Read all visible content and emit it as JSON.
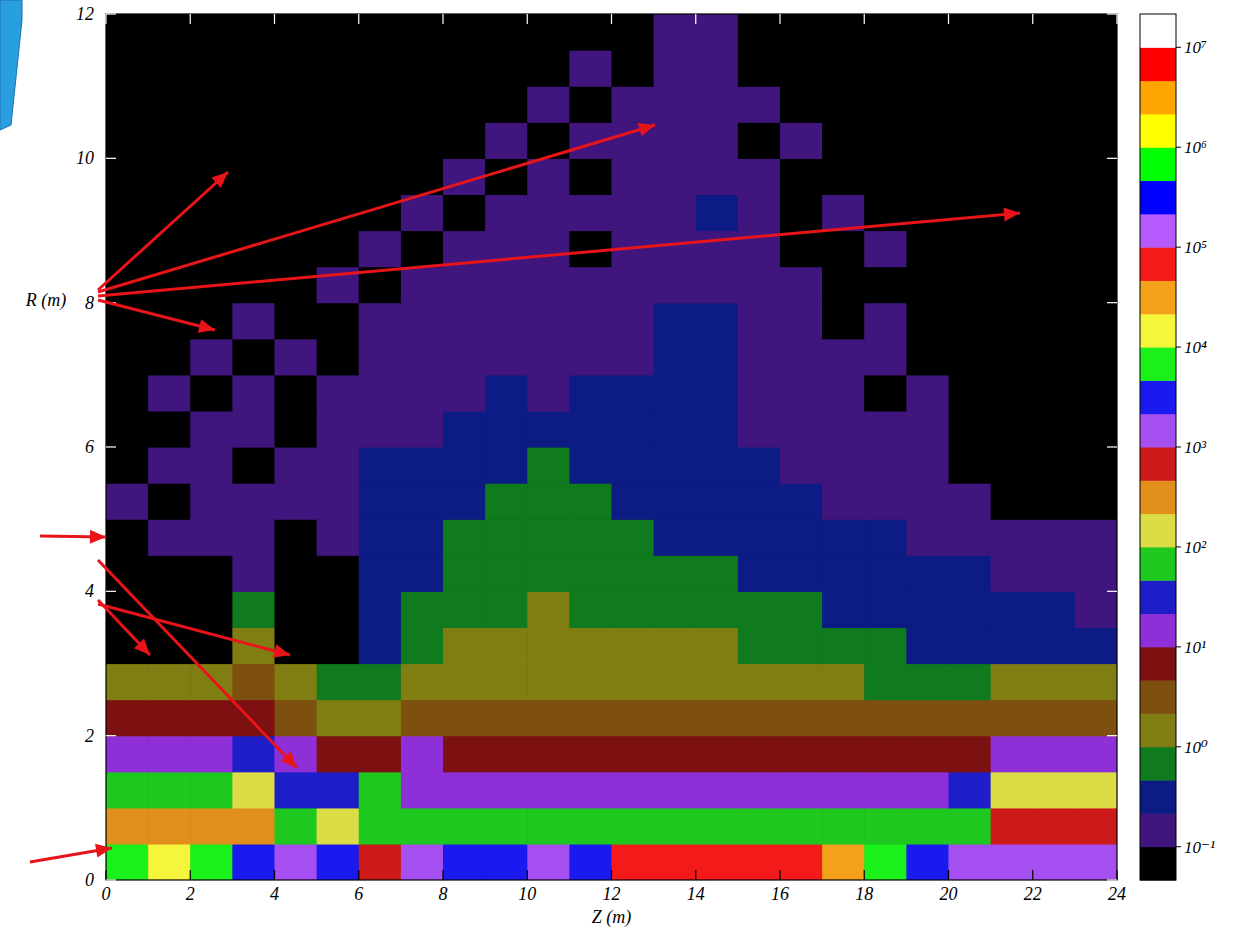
{
  "chart_data": {
    "type": "heatmap",
    "xlabel": "Z (m)",
    "ylabel": "R (m)",
    "xlim": [
      0,
      24
    ],
    "ylim": [
      0,
      12
    ],
    "xticks": [
      0,
      2,
      4,
      6,
      8,
      10,
      12,
      14,
      16,
      18,
      20,
      22,
      24
    ],
    "yticks": [
      0,
      2,
      4,
      6,
      8,
      10,
      12
    ],
    "cells": [
      [
        7000,
        10000,
        7000,
        3000,
        1000,
        3000,
        700,
        1000,
        3000,
        3000,
        1000,
        3000,
        70000,
        70000,
        70000,
        70000,
        70000,
        30000,
        7000,
        3000,
        1000,
        1000,
        1000,
        1000
      ],
      [
        300,
        300,
        300,
        300,
        70,
        100,
        70,
        70,
        70,
        70,
        70,
        70,
        70,
        70,
        70,
        70,
        70,
        70,
        70,
        70,
        70,
        700,
        700,
        700
      ],
      [
        70,
        70,
        70,
        100,
        30,
        30,
        70,
        10,
        10,
        10,
        10,
        10,
        10,
        10,
        10,
        10,
        10,
        10,
        10,
        10,
        30,
        100,
        100,
        100
      ],
      [
        10,
        10,
        10,
        30,
        10,
        7,
        7,
        10,
        7,
        7,
        7,
        7,
        7,
        7,
        7,
        7,
        7,
        7,
        7,
        7,
        7,
        10,
        10,
        10
      ],
      [
        7,
        7,
        7,
        7,
        3,
        1,
        1,
        3,
        3,
        3,
        3,
        3,
        3,
        3,
        3,
        3,
        3,
        3,
        3,
        3,
        3,
        3,
        3,
        3
      ],
      [
        1,
        1,
        1,
        3,
        1,
        0.7,
        0.7,
        1,
        1,
        1,
        1,
        1,
        1,
        1,
        1,
        1,
        1,
        1,
        0.7,
        0.7,
        0.7,
        1,
        1,
        1
      ],
      [
        0.01,
        0.01,
        0.01,
        1,
        0.01,
        0.01,
        0.3,
        0.7,
        1,
        1,
        1,
        1,
        1,
        1,
        1,
        0.7,
        0.7,
        0.7,
        0.7,
        0.3,
        0.3,
        0.3,
        0.3,
        0.3
      ],
      [
        0.01,
        0.01,
        0.01,
        0.7,
        0.01,
        0.01,
        0.3,
        0.7,
        0.7,
        0.7,
        1,
        0.7,
        0.7,
        0.7,
        0.7,
        0.7,
        0.7,
        0.3,
        0.3,
        0.3,
        0.3,
        0.3,
        0.3,
        0.1
      ],
      [
        0.01,
        0.01,
        0.01,
        0.1,
        0.01,
        0.01,
        0.3,
        0.3,
        0.7,
        0.7,
        0.7,
        0.7,
        0.7,
        0.7,
        0.7,
        0.3,
        0.3,
        0.3,
        0.3,
        0.3,
        0.3,
        0.1,
        0.1,
        0.1
      ],
      [
        0.01,
        0.1,
        0.1,
        0.1,
        0.01,
        0.1,
        0.3,
        0.3,
        0.7,
        0.7,
        0.7,
        0.7,
        0.7,
        0.3,
        0.3,
        0.3,
        0.3,
        0.3,
        0.3,
        0.1,
        0.1,
        0.1,
        0.1,
        0.1
      ],
      [
        0.1,
        0.01,
        0.1,
        0.1,
        0.1,
        0.1,
        0.3,
        0.3,
        0.3,
        0.7,
        0.7,
        0.7,
        0.3,
        0.3,
        0.3,
        0.3,
        0.3,
        0.1,
        0.1,
        0.1,
        0.1,
        0.01,
        0.01,
        0.01
      ],
      [
        0.01,
        0.1,
        0.1,
        0.01,
        0.1,
        0.1,
        0.3,
        0.3,
        0.3,
        0.3,
        0.7,
        0.3,
        0.3,
        0.3,
        0.3,
        0.3,
        0.1,
        0.1,
        0.1,
        0.1,
        0.01,
        0.01,
        0.01,
        0.01
      ],
      [
        0.01,
        0.01,
        0.1,
        0.1,
        0.01,
        0.1,
        0.1,
        0.1,
        0.3,
        0.3,
        0.3,
        0.3,
        0.3,
        0.3,
        0.3,
        0.1,
        0.1,
        0.1,
        0.1,
        0.1,
        0.01,
        0.01,
        0.01,
        0.01
      ],
      [
        0.01,
        0.1,
        0.01,
        0.1,
        0.01,
        0.1,
        0.1,
        0.1,
        0.1,
        0.3,
        0.1,
        0.3,
        0.3,
        0.3,
        0.3,
        0.1,
        0.1,
        0.1,
        0.01,
        0.1,
        0.01,
        0.01,
        0.01,
        0.01
      ],
      [
        0.01,
        0.01,
        0.1,
        0.01,
        0.1,
        0.01,
        0.1,
        0.1,
        0.1,
        0.1,
        0.1,
        0.1,
        0.1,
        0.3,
        0.3,
        0.1,
        0.1,
        0.1,
        0.1,
        0.01,
        0.01,
        0.01,
        0.01,
        0.01
      ],
      [
        0.01,
        0.01,
        0.01,
        0.1,
        0.01,
        0.01,
        0.1,
        0.1,
        0.1,
        0.1,
        0.1,
        0.1,
        0.1,
        0.3,
        0.3,
        0.1,
        0.1,
        0.01,
        0.1,
        0.01,
        0.01,
        0.01,
        0.01,
        0.01
      ],
      [
        0.01,
        0.01,
        0.01,
        0.01,
        0.01,
        0.1,
        0.01,
        0.1,
        0.1,
        0.1,
        0.1,
        0.1,
        0.1,
        0.1,
        0.1,
        0.1,
        0.1,
        0.01,
        0.01,
        0.01,
        0.01,
        0.01,
        0.01,
        0.01
      ],
      [
        0.01,
        0.01,
        0.01,
        0.01,
        0.01,
        0.01,
        0.1,
        0.01,
        0.1,
        0.1,
        0.1,
        0.01,
        0.1,
        0.1,
        0.1,
        0.1,
        0.01,
        0.01,
        0.1,
        0.01,
        0.01,
        0.01,
        0.01,
        0.01
      ],
      [
        0.01,
        0.01,
        0.01,
        0.01,
        0.01,
        0.01,
        0.01,
        0.1,
        0.01,
        0.1,
        0.1,
        0.1,
        0.1,
        0.1,
        0.3,
        0.1,
        0.01,
        0.1,
        0.01,
        0.01,
        0.01,
        0.01,
        0.01,
        0.01
      ],
      [
        0.01,
        0.01,
        0.01,
        0.01,
        0.01,
        0.01,
        0.01,
        0.01,
        0.1,
        0.01,
        0.1,
        0.01,
        0.1,
        0.1,
        0.1,
        0.1,
        0.01,
        0.01,
        0.01,
        0.01,
        0.01,
        0.01,
        0.01,
        0.01
      ],
      [
        0.01,
        0.01,
        0.01,
        0.01,
        0.01,
        0.01,
        0.01,
        0.01,
        0.01,
        0.1,
        0.01,
        0.1,
        0.1,
        0.1,
        0.1,
        0.01,
        0.1,
        0.01,
        0.01,
        0.01,
        0.01,
        0.01,
        0.01,
        0.01
      ],
      [
        0.01,
        0.01,
        0.01,
        0.01,
        0.01,
        0.01,
        0.01,
        0.01,
        0.01,
        0.01,
        0.1,
        0.01,
        0.1,
        0.1,
        0.1,
        0.1,
        0.01,
        0.01,
        0.01,
        0.01,
        0.01,
        0.01,
        0.01,
        0.01
      ],
      [
        0.01,
        0.01,
        0.01,
        0.01,
        0.01,
        0.01,
        0.01,
        0.01,
        0.01,
        0.01,
        0.01,
        0.1,
        0.01,
        0.1,
        0.1,
        0.01,
        0.01,
        0.01,
        0.01,
        0.01,
        0.01,
        0.01,
        0.01,
        0.01
      ],
      [
        0.01,
        0.01,
        0.01,
        0.01,
        0.01,
        0.01,
        0.01,
        0.01,
        0.01,
        0.01,
        0.01,
        0.01,
        0.01,
        0.1,
        0.1,
        0.01,
        0.01,
        0.01,
        0.01,
        0.01,
        0.01,
        0.01,
        0.01,
        0.01
      ]
    ],
    "colorbar": {
      "range": [
        0.1,
        10000000
      ],
      "log": true,
      "ticks": [
        {
          "value": 0.1,
          "label": "10⁻¹"
        },
        {
          "value": 1,
          "label": "10⁰"
        },
        {
          "value": 10,
          "label": "10¹"
        },
        {
          "value": 100,
          "label": "10²"
        },
        {
          "value": 1000,
          "label": "10³"
        },
        {
          "value": 10000,
          "label": "10⁴"
        },
        {
          "value": 100000,
          "label": "10⁵"
        },
        {
          "value": 1000000,
          "label": "10⁶"
        },
        {
          "value": 10000000,
          "label": "10⁷"
        }
      ],
      "colors": [
        "#000000",
        "#40167e",
        "#0c1c84",
        "#0f7a1e",
        "#807e12",
        "#7d5010",
        "#7d1010",
        "#8e2fd8",
        "#1e1ec8",
        "#1ec81e",
        "#dcdc46",
        "#e0901a",
        "#cc1a1a",
        "#a64ff0",
        "#1a1af0",
        "#1af01a",
        "#f5f53c",
        "#f5a01a",
        "#f51a1a",
        "#b45aff",
        "#0000ff",
        "#00ff00",
        "#ffff00",
        "#ffa500",
        "#ff0000",
        "#ffffff"
      ]
    }
  }
}
